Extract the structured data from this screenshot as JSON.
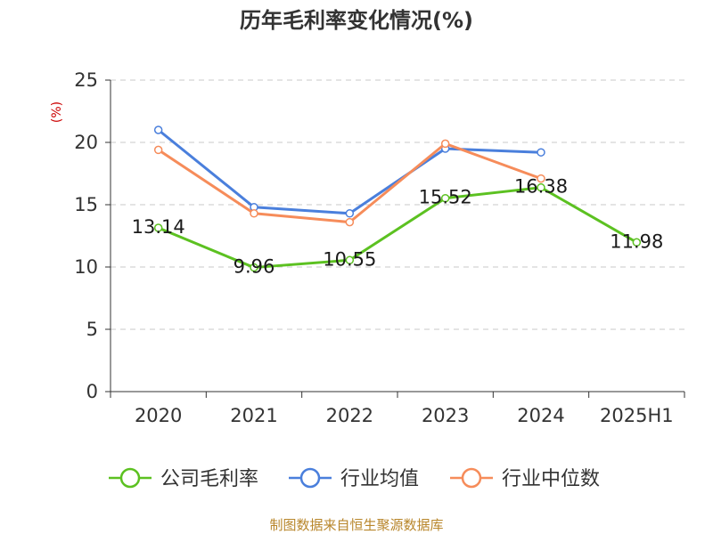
{
  "chart_data": {
    "type": "line",
    "title": "历年毛利率变化情况(%)",
    "unit_label": "(%)",
    "categories": [
      "2020",
      "2021",
      "2022",
      "2023",
      "2024",
      "2025H1"
    ],
    "y_ticks": [
      "0",
      "5",
      "10",
      "15",
      "20",
      "25"
    ],
    "ylim": [
      0,
      25
    ],
    "grid": true,
    "legend_position": "bottom",
    "series": [
      {
        "name": "公司毛利率",
        "color": "#5cc121",
        "values": [
          13.14,
          9.96,
          10.55,
          15.52,
          16.38,
          11.98
        ],
        "labels": [
          "13.14",
          "9.96",
          "10.55",
          "15.52",
          "16.38",
          "11.98"
        ]
      },
      {
        "name": "行业均值",
        "color": "#4a7fdc",
        "values": [
          21.0,
          14.8,
          14.3,
          19.5,
          19.2,
          null
        ]
      },
      {
        "name": "行业中位数",
        "color": "#f68c5a",
        "values": [
          19.4,
          14.3,
          13.6,
          19.9,
          17.1,
          null
        ]
      }
    ],
    "source": "制图数据来自恒生聚源数据库"
  }
}
